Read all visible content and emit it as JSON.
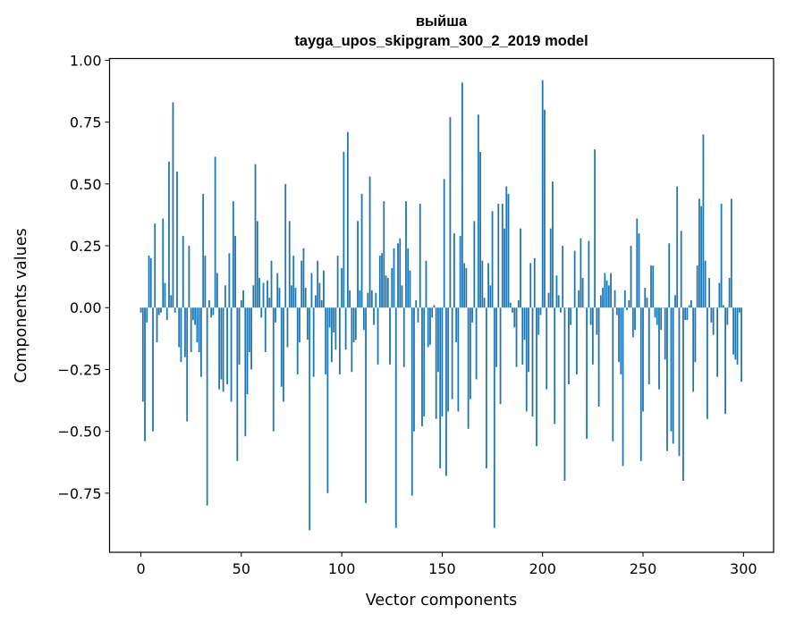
{
  "chart_data": {
    "type": "bar",
    "title_line1": "выйша",
    "title_line2": "tayga_upos_skipgram_300_2_2019 model",
    "xlabel": "Vector components",
    "ylabel": "Components values",
    "xlim": [
      -15.6,
      315
    ],
    "ylim": [
      -0.989,
      1.007
    ],
    "xticks": [
      0,
      50,
      100,
      150,
      200,
      250,
      300
    ],
    "xtick_labels": [
      "0",
      "50",
      "100",
      "150",
      "200",
      "250",
      "300"
    ],
    "yticks": [
      -0.75,
      -0.5,
      -0.25,
      0,
      0.25,
      0.5,
      0.75,
      1.0
    ],
    "ytick_labels": [
      "−0.75",
      "−0.50",
      "−0.25",
      "0.00",
      "0.25",
      "0.50",
      "0.75",
      "1.00"
    ],
    "grid": false,
    "bar_color": "#1f77b4",
    "bar_width": 0.8,
    "values": [
      -0.02,
      -0.38,
      -0.54,
      -0.06,
      0.21,
      0.2,
      -0.5,
      0.34,
      -0.14,
      -0.03,
      -0.02,
      0.36,
      0.1,
      -0.05,
      0.59,
      0.05,
      0.83,
      -0.02,
      0.55,
      -0.16,
      -0.22,
      0.29,
      -0.2,
      -0.46,
      0.25,
      -0.18,
      -0.05,
      -0.07,
      -0.14,
      -0.18,
      -0.28,
      0.46,
      0.21,
      -0.8,
      0.03,
      -0.04,
      -0.03,
      0.61,
      0.14,
      -0.33,
      -0.29,
      -0.34,
      0.09,
      -0.31,
      0.22,
      -0.38,
      0.43,
      0.29,
      -0.62,
      -0.23,
      0.03,
      0.07,
      -0.52,
      -0.35,
      -0.18,
      -0.25,
      0.09,
      0.58,
      0.35,
      0.12,
      -0.04,
      0.1,
      -0.18,
      0.11,
      0.04,
      0.19,
      -0.5,
      -0.06,
      0.14,
      0.08,
      -0.32,
      -0.38,
      0.5,
      -0.16,
      0.35,
      0.09,
      0.21,
      0.08,
      -0.27,
      -0.14,
      0.19,
      0.24,
      0.08,
      -0.13,
      -0.9,
      0.14,
      -0.28,
      0.05,
      0.19,
      0.1,
      0.03,
      0.15,
      -0.27,
      -0.75,
      -0.08,
      -0.22,
      -0.1,
      -0.17,
      0.21,
      -0.27,
      0.16,
      0.63,
      -0.17,
      0.71,
      0.07,
      -0.26,
      -0.14,
      -0.13,
      0.35,
      0.07,
      0.46,
      -0.09,
      -0.79,
      0.06,
      0.53,
      0.07,
      -0.07,
      0.06,
      -0.23,
      0.21,
      0.22,
      0.43,
      0.13,
      0.12,
      -0.23,
      0.16,
      0.24,
      -0.89,
      0.26,
      0.28,
      0.09,
      -0.24,
      0.43,
      0.24,
      0.15,
      -0.76,
      -0.5,
      0.03,
      -0.06,
      0.42,
      -0.48,
      -0.44,
      0.19,
      -0.16,
      -0.15,
      -0.04,
      0.01,
      -0.45,
      -0.26,
      -0.65,
      -0.44,
      0.52,
      -0.68,
      -0.42,
      0.77,
      -0.37,
      0.3,
      -0.14,
      -0.42,
      0.29,
      0.91,
      0.18,
      0.16,
      -0.49,
      -0.37,
      -0.06,
      0.35,
      -0.29,
      0.78,
      0.63,
      0.19,
      0.04,
      -0.65,
      0.18,
      0.09,
      0.39,
      -0.89,
      -0.24,
      0.42,
      -0.39,
      0.42,
      0.32,
      0.49,
      0.46,
      0.02,
      -0.02,
      -0.08,
      -0.24,
      0.03,
      0.32,
      -0.23,
      -0.13,
      -0.42,
      -0.26,
      0.18,
      -0.44,
      0.2,
      -0.56,
      -0.11,
      -0.03,
      0.92,
      0.8,
      -0.33,
      0.06,
      0.32,
      0.51,
      -0.47,
      0.13,
      0.05,
      -0.02,
      0.25,
      -0.7,
      0.0,
      -0.31,
      -0.07,
      0.0,
      0.23,
      -0.27,
      0.07,
      0.28,
      0.12,
      0.0,
      -0.53,
      0.27,
      -0.07,
      -0.23,
      0.64,
      -0.11,
      -0.4,
      0.05,
      0.08,
      0.14,
      0.11,
      0.09,
      0.14,
      -0.54,
      0.07,
      -0.03,
      -0.22,
      -0.27,
      -0.64,
      0.07,
      -0.01,
      0.03,
      0.25,
      -0.12,
      -0.09,
      0.36,
      0.3,
      -0.62,
      -0.42,
      0.08,
      0.04,
      -0.31,
      0.17,
      0.17,
      -0.04,
      -0.07,
      -0.33,
      -0.09,
      0.0,
      -0.21,
      -0.58,
      0.26,
      -0.5,
      -0.55,
      0.05,
      0.49,
      -0.6,
      0.31,
      -0.7,
      -0.05,
      -0.05,
      0.01,
      0.03,
      -0.34,
      -0.22,
      0.17,
      0.44,
      0.41,
      0.7,
      0.19,
      -0.45,
      0.12,
      -0.06,
      -0.11,
      0.0,
      -0.28,
      0.1,
      0.42,
      0.01,
      -0.43,
      -0.07,
      0.12,
      0.44,
      -0.19,
      -0.21,
      -0.23,
      -0.02,
      -0.3
    ]
  }
}
